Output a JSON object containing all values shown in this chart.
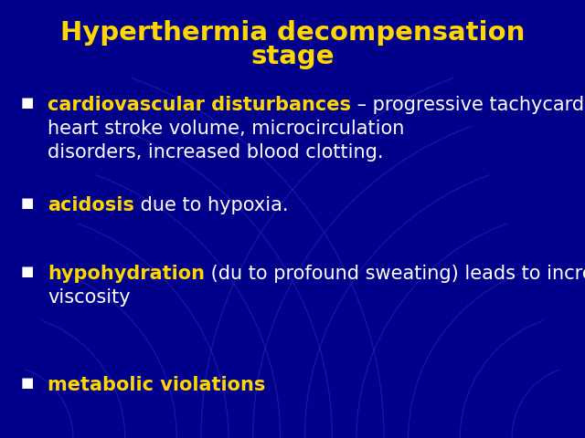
{
  "title_line1": "Hyperthermia decompensation",
  "title_line2": "stage",
  "title_color": "#FFD700",
  "bg_color": "#00008B",
  "arc_color": "#2222AA",
  "white": "#FFFFFF",
  "gold": "#FFD700",
  "font": "DejaVu Sans",
  "title_fs": 21,
  "body_fs": 15,
  "bullet_fs": 11,
  "bullet_char": "■",
  "bullets": [
    {
      "highlight": "cardiovascular disturbances",
      "rest_lines": [
        " – progressive tachycardia, decrease of",
        "heart stroke volume, microcirculation",
        "disorders, increased blood clotting."
      ],
      "highlight_color": "#FFD700",
      "rest_color": "#FFFFFF"
    },
    {
      "highlight": "acidosis",
      "rest_lines": [
        " due to hypoxia."
      ],
      "highlight_color": "#FFD700",
      "rest_color": "#FFFFFF"
    },
    {
      "highlight": "hypohydration",
      "rest_lines": [
        " (du to profound sweating) leads to increased blood",
        "viscosity"
      ],
      "highlight_color": "#FFD700",
      "rest_color": "#FFFFFF"
    },
    {
      "highlight": "metabolic violations",
      "rest_lines": [],
      "highlight_color": "#FFD700",
      "rest_color": "#FFFFFF"
    }
  ]
}
